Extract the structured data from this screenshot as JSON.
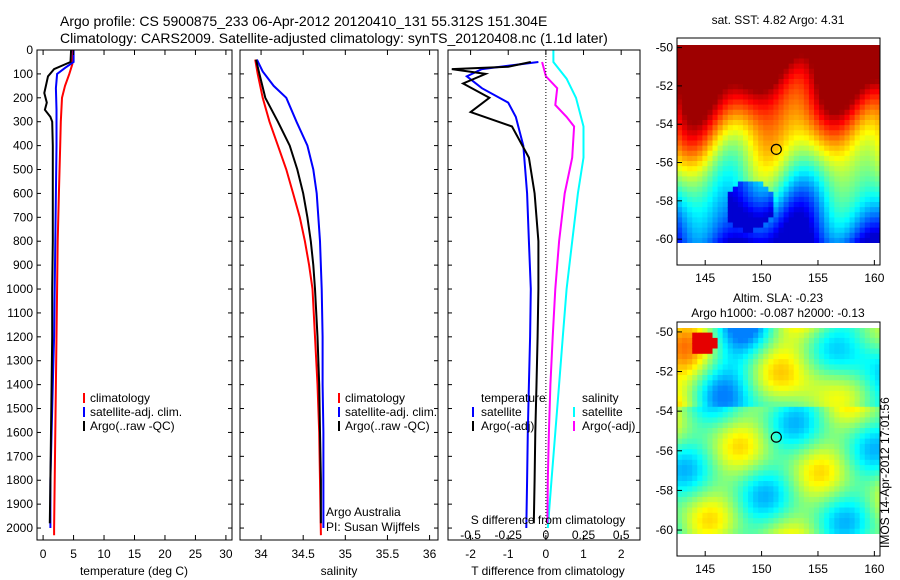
{
  "title": {
    "line1": "Argo profile: CS 5900875_233 06-Apr-2012 20120410_131 55.312S 151.304E",
    "line2": "Climatology: CARS2009. Satellite-adjusted climatology: synTS_20120408.nc (1.1d later)"
  },
  "watermark": "IMOS 14-Apr-2012 17:01:56",
  "colors": {
    "climatology": "#ff0000",
    "satellite": "#0000ff",
    "argo": "#000000",
    "salinity_satellite": "#00ffff",
    "salinity_argo": "#ff00ff",
    "map_land_blank": "#ffffff"
  },
  "chart_data": [
    {
      "type": "line",
      "panel": "temperature",
      "xlabel": "temperature (deg C)",
      "ylabel": "",
      "xlim": [
        -1,
        31
      ],
      "ylim": [
        2050,
        0
      ],
      "xticks": [
        0,
        5,
        10,
        15,
        20,
        25,
        30
      ],
      "yticks": [
        0,
        100,
        200,
        300,
        400,
        500,
        600,
        700,
        800,
        900,
        1000,
        1100,
        1200,
        1300,
        1400,
        1500,
        1600,
        1700,
        1800,
        1900,
        2000
      ],
      "legend": [
        "climatology",
        "satellite-adj. clim.",
        "Argo(..raw -QC)"
      ],
      "legend_position": "lower-right",
      "series": [
        {
          "name": "climatology",
          "color": "#ff0000",
          "points": [
            [
              4.9,
              0
            ],
            [
              4.8,
              60
            ],
            [
              4.3,
              100
            ],
            [
              3.6,
              150
            ],
            [
              3.1,
              200
            ],
            [
              2.9,
              300
            ],
            [
              2.8,
              400
            ],
            [
              2.6,
              600
            ],
            [
              2.4,
              800
            ],
            [
              2.3,
              1000
            ],
            [
              2.2,
              1200
            ],
            [
              2.1,
              1400
            ],
            [
              2.0,
              1600
            ],
            [
              1.9,
              1800
            ],
            [
              1.8,
              2000
            ],
            [
              1.8,
              2030
            ]
          ]
        },
        {
          "name": "satellite-adj. clim.",
          "color": "#0000ff",
          "points": [
            [
              5.0,
              0
            ],
            [
              5.0,
              50
            ],
            [
              3.6,
              75
            ],
            [
              2.3,
              100
            ],
            [
              2.1,
              160
            ],
            [
              2.2,
              250
            ],
            [
              2.2,
              400
            ],
            [
              2.1,
              600
            ],
            [
              2.0,
              800
            ],
            [
              1.9,
              1000
            ],
            [
              1.8,
              1200
            ],
            [
              1.6,
              1400
            ],
            [
              1.4,
              1600
            ],
            [
              1.2,
              1800
            ],
            [
              1.2,
              2000
            ]
          ]
        },
        {
          "name": "Argo(..raw -QC)",
          "color": "#000000",
          "points": [
            [
              4.6,
              0
            ],
            [
              4.5,
              50
            ],
            [
              1.8,
              80
            ],
            [
              0.8,
              110
            ],
            [
              0.2,
              180
            ],
            [
              0.6,
              220
            ],
            [
              0.3,
              250
            ],
            [
              1.2,
              280
            ],
            [
              1.5,
              300
            ],
            [
              1.6,
              400
            ],
            [
              1.6,
              600
            ],
            [
              1.6,
              800
            ],
            [
              1.5,
              1000
            ],
            [
              1.5,
              1200
            ],
            [
              1.4,
              1400
            ],
            [
              1.3,
              1600
            ],
            [
              1.2,
              1800
            ],
            [
              1.1,
              1980
            ]
          ]
        }
      ]
    },
    {
      "type": "line",
      "panel": "salinity",
      "xlabel": "salinity",
      "xlim": [
        33.75,
        36.1
      ],
      "ylim": [
        2050,
        0
      ],
      "xticks": [
        34,
        34.5,
        35,
        35.5,
        36
      ],
      "xticklabels": [
        "34",
        "34.5",
        "35",
        "35.5",
        "36"
      ],
      "legend": [
        "climatology",
        "satellite-adj. clim.",
        "Argo(..raw -QC)"
      ],
      "legend_position": "lower-right",
      "annotations": [
        "Argo Australia",
        "PI: Susan Wijffels"
      ],
      "series": [
        {
          "name": "climatology",
          "color": "#ff0000",
          "points": [
            [
              33.93,
              40
            ],
            [
              33.96,
              100
            ],
            [
              34.02,
              200
            ],
            [
              34.1,
              300
            ],
            [
              34.2,
              400
            ],
            [
              34.3,
              500
            ],
            [
              34.38,
              600
            ],
            [
              34.46,
              700
            ],
            [
              34.52,
              800
            ],
            [
              34.57,
              900
            ],
            [
              34.61,
              1000
            ],
            [
              34.64,
              1200
            ],
            [
              34.67,
              1400
            ],
            [
              34.69,
              1600
            ],
            [
              34.7,
              1800
            ],
            [
              34.71,
              2030
            ]
          ]
        },
        {
          "name": "satellite-adj. clim.",
          "color": "#0000ff",
          "points": [
            [
              33.95,
              40
            ],
            [
              34.02,
              90
            ],
            [
              34.15,
              150
            ],
            [
              34.3,
              200
            ],
            [
              34.42,
              300
            ],
            [
              34.55,
              400
            ],
            [
              34.62,
              500
            ],
            [
              34.66,
              600
            ],
            [
              34.7,
              800
            ],
            [
              34.72,
              1000
            ],
            [
              34.73,
              1200
            ],
            [
              34.73,
              1400
            ],
            [
              34.74,
              1600
            ],
            [
              34.74,
              1800
            ],
            [
              34.74,
              2000
            ]
          ]
        },
        {
          "name": "Argo(..raw -QC)",
          "color": "#000000",
          "points": [
            [
              33.94,
              40
            ],
            [
              33.98,
              100
            ],
            [
              34.05,
              200
            ],
            [
              34.2,
              300
            ],
            [
              34.34,
              400
            ],
            [
              34.43,
              500
            ],
            [
              34.5,
              600
            ],
            [
              34.55,
              700
            ],
            [
              34.59,
              800
            ],
            [
              34.62,
              900
            ],
            [
              34.64,
              1000
            ],
            [
              34.67,
              1200
            ],
            [
              34.69,
              1400
            ],
            [
              34.7,
              1600
            ],
            [
              34.71,
              1800
            ],
            [
              34.71,
              1980
            ]
          ]
        }
      ]
    },
    {
      "type": "line",
      "panel": "difference",
      "xlabel": "T difference from climatology",
      "xlabel_top": "S difference from climatology",
      "xlim": [
        -2.6,
        2.5
      ],
      "ylim": [
        2050,
        0
      ],
      "xticks": [
        -2,
        -1,
        0,
        1,
        2
      ],
      "xticklabels": [
        "-2",
        "-1",
        "0",
        "1",
        "2"
      ],
      "s_xticklabels": [
        "-0.5",
        "-0.25",
        "0",
        "0.25",
        "0.5"
      ],
      "zero_line": "dotted",
      "legend": [
        "temperature",
        "satellite",
        "Argo(-adj)",
        "salinity",
        "satellite",
        "Argo(-adj)"
      ],
      "series": [
        {
          "name": "satellite",
          "group": "temperature",
          "color": "#0000ff",
          "points": [
            [
              -0.2,
              50
            ],
            [
              -1.7,
              80
            ],
            [
              -2.1,
              110
            ],
            [
              -1.7,
              160
            ],
            [
              -1.0,
              220
            ],
            [
              -0.8,
              280
            ],
            [
              -0.6,
              400
            ],
            [
              -0.5,
              600
            ],
            [
              -0.45,
              800
            ],
            [
              -0.4,
              1000
            ],
            [
              -0.42,
              1200
            ],
            [
              -0.45,
              1400
            ],
            [
              -0.48,
              1600
            ],
            [
              -0.5,
              1800
            ],
            [
              -0.52,
              2000
            ]
          ]
        },
        {
          "name": "Argo(-adj)",
          "group": "temperature",
          "color": "#000000",
          "points": [
            [
              -0.4,
              50
            ],
            [
              -1.0,
              70
            ],
            [
              -2.5,
              80
            ],
            [
              -1.6,
              100
            ],
            [
              -2.2,
              140
            ],
            [
              -1.5,
              200
            ],
            [
              -2.0,
              260
            ],
            [
              -0.9,
              320
            ],
            [
              -0.45,
              450
            ],
            [
              -0.3,
              600
            ],
            [
              -0.2,
              800
            ],
            [
              -0.2,
              1000
            ],
            [
              -0.22,
              1200
            ],
            [
              -0.25,
              1400
            ],
            [
              -0.28,
              1600
            ],
            [
              -0.3,
              1800
            ],
            [
              -0.32,
              1980
            ]
          ]
        },
        {
          "name": "satellite",
          "group": "salinity",
          "color": "#00ffff",
          "points": [
            [
              0.2,
              0
            ],
            [
              0.2,
              50
            ],
            [
              0.55,
              120
            ],
            [
              0.8,
              200
            ],
            [
              1.0,
              320
            ],
            [
              1.0,
              450
            ],
            [
              0.85,
              600
            ],
            [
              0.7,
              800
            ],
            [
              0.55,
              1000
            ],
            [
              0.45,
              1200
            ],
            [
              0.35,
              1400
            ],
            [
              0.25,
              1600
            ],
            [
              0.15,
              1800
            ],
            [
              0.05,
              2000
            ]
          ]
        },
        {
          "name": "Argo(-adj)",
          "group": "salinity",
          "color": "#ff00ff",
          "points": [
            [
              -0.1,
              50
            ],
            [
              0.0,
              110
            ],
            [
              0.3,
              160
            ],
            [
              0.25,
              230
            ],
            [
              0.55,
              280
            ],
            [
              0.75,
              320
            ],
            [
              0.7,
              450
            ],
            [
              0.5,
              600
            ],
            [
              0.35,
              800
            ],
            [
              0.25,
              1000
            ],
            [
              0.18,
              1200
            ],
            [
              0.12,
              1400
            ],
            [
              0.08,
              1600
            ],
            [
              0.05,
              1800
            ],
            [
              0.04,
              1980
            ]
          ]
        }
      ]
    },
    {
      "type": "heatmap",
      "panel": "sst_map",
      "title": "sat. SST: 4.82  Argo: 4.31",
      "xlim": [
        142.5,
        160.5
      ],
      "ylim": [
        -60.2,
        -49.5
      ],
      "xticks": [
        145,
        150,
        155,
        160
      ],
      "yticks": [
        -50,
        -52,
        -54,
        -56,
        -58,
        -60
      ],
      "marker": {
        "lon": 151.304,
        "lat": -55.312
      }
    },
    {
      "type": "heatmap",
      "panel": "sla_map",
      "title": "Altim. SLA: -0.23",
      "subtitle": "Argo h1000: -0.087  h2000: -0.13",
      "xlim": [
        142.5,
        160.5
      ],
      "ylim": [
        -60.2,
        -49.5
      ],
      "xticks": [
        145,
        150,
        155,
        160
      ],
      "yticks": [
        -50,
        -52,
        -54,
        -56,
        -58,
        -60
      ],
      "marker": {
        "lon": 151.304,
        "lat": -55.312
      }
    }
  ]
}
